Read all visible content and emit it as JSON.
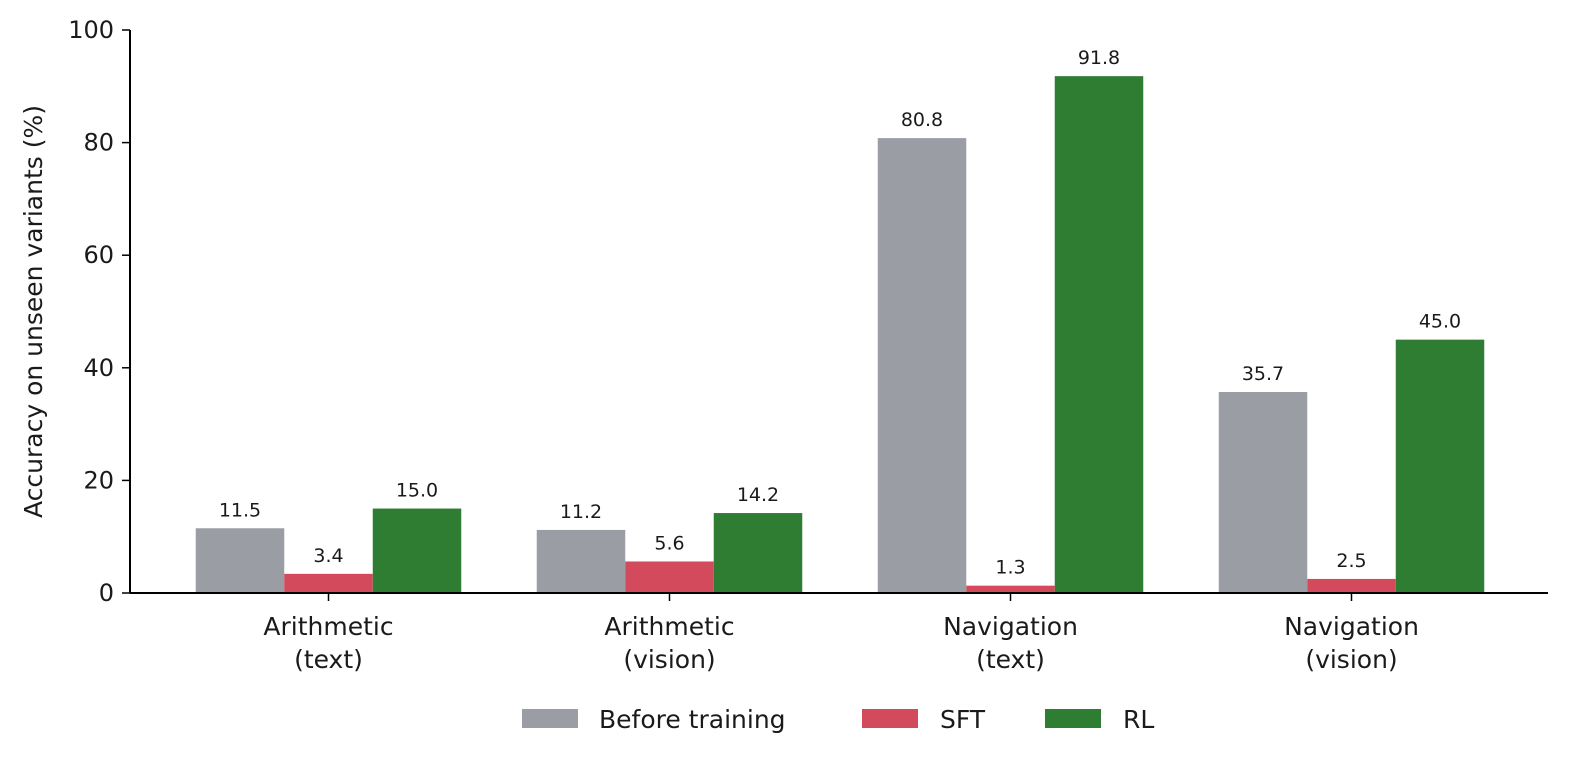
{
  "chart_data": {
    "type": "bar",
    "categories": [
      [
        "Arithmetic",
        "(text)"
      ],
      [
        "Arithmetic",
        "(vision)"
      ],
      [
        "Navigation",
        "(text)"
      ],
      [
        "Navigation",
        "(vision)"
      ]
    ],
    "series": [
      {
        "name": "Before training",
        "color": "#9a9ea4",
        "values": [
          11.5,
          11.2,
          80.8,
          35.7
        ]
      },
      {
        "name": "SFT",
        "color": "#d24a5c",
        "values": [
          3.4,
          5.6,
          1.3,
          2.5
        ]
      },
      {
        "name": "RL",
        "color": "#2e7d32",
        "values": [
          15.0,
          14.2,
          91.8,
          45.0
        ]
      }
    ],
    "ylabel": "Accuracy on unseen variants (%)",
    "xlabel": "",
    "ylim": [
      0,
      100
    ],
    "yticks": [
      0,
      20,
      40,
      60,
      80,
      100
    ],
    "grid": false,
    "legend_position": "bottom-center"
  }
}
